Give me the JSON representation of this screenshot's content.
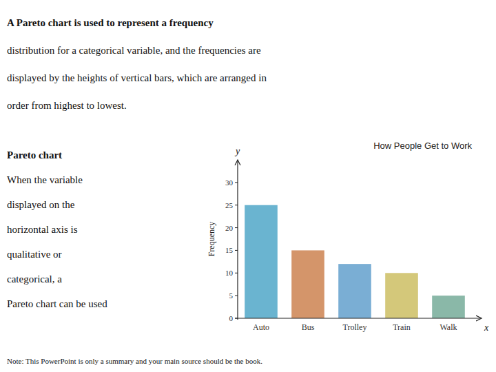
{
  "chart_data": {
    "type": "bar",
    "title": "How People Get to Work",
    "categories": [
      "Auto",
      "Bus",
      "Trolley",
      "Train",
      "Walk"
    ],
    "values": [
      25,
      15,
      12,
      10,
      5
    ],
    "colors": [
      "#6ab4d0",
      "#d4956a",
      "#7aaed4",
      "#d4c87a",
      "#8ab8a8"
    ],
    "ylabel": "Frequency",
    "ylim": [
      0,
      35
    ],
    "yticks": [
      0,
      5,
      10,
      15,
      20,
      25,
      30
    ],
    "grid": false,
    "annotations": [
      "A Pareto chart is used to represent a frequency",
      "distribution for a categorical variable, and the frequencies are",
      "displayed by the heights of vertical bars, which are arranged in",
      "order from highest to lowest.",
      "Pareto chart",
      "When the variable",
      "displayed on the",
      "horizontal axis is",
      "qualitative or",
      "categorical, a",
      "Pareto chart can be used",
      "Note: This PowerPoint is only a summary and your main source should be the book.",
      "x",
      "y"
    ]
  }
}
